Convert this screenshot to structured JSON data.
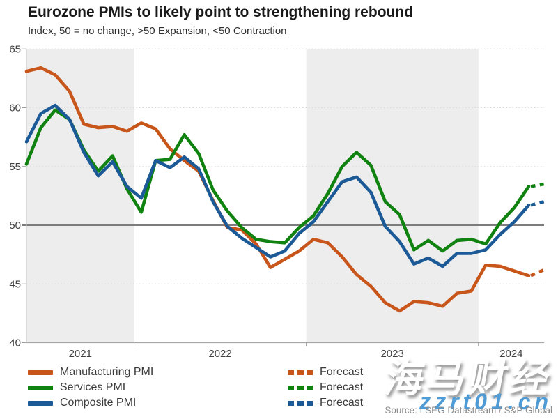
{
  "header": {
    "title": "Eurozone PMIs to likely point to strengthening rebound",
    "subtitle": "Index, 50 = no change, >50 Expansion, <50 Contraction"
  },
  "legend": {
    "forecast_label": "Forecast"
  },
  "source": "Source: LSEG Datastream / S&P Global",
  "watermark": {
    "cjk": "海马财经",
    "latin": "zzrt01.cn"
  },
  "chart_data": {
    "type": "line",
    "title": "Eurozone PMIs to likely point to strengthening rebound",
    "subtitle": "Index, 50 = no change, >50 Expansion, <50 Contraction",
    "ylim": [
      40,
      65
    ],
    "y_ticks": [
      65,
      60,
      55,
      50,
      45,
      40
    ],
    "reference_line": 50,
    "x_tick_years": [
      "2021",
      "2022",
      "2023",
      "2024"
    ],
    "shaded_years": [
      "2021",
      "2023"
    ],
    "band_color": "#ededed",
    "reference_line_color": "#7c7c7c",
    "gridline_color": "#d6d6d6",
    "legend_position": "bottom-left",
    "categories": [
      "2021-05",
      "2021-06",
      "2021-07",
      "2021-08",
      "2021-09",
      "2021-10",
      "2021-11",
      "2021-12",
      "2022-01",
      "2022-02",
      "2022-03",
      "2022-04",
      "2022-05",
      "2022-06",
      "2022-07",
      "2022-08",
      "2022-09",
      "2022-10",
      "2022-11",
      "2022-12",
      "2023-01",
      "2023-02",
      "2023-03",
      "2023-04",
      "2023-05",
      "2023-06",
      "2023-07",
      "2023-08",
      "2023-09",
      "2023-10",
      "2023-11",
      "2023-12",
      "2024-01",
      "2024-02",
      "2024-03",
      "2024-04"
    ],
    "forecast_category": "2024-05",
    "series": [
      {
        "name": "Manufacturing PMI",
        "color": "#c8551a",
        "values": [
          63.1,
          63.4,
          62.8,
          61.4,
          58.6,
          58.3,
          58.4,
          58.0,
          58.7,
          58.2,
          56.5,
          55.5,
          54.6,
          52.1,
          49.8,
          49.6,
          48.4,
          46.4,
          47.1,
          47.8,
          48.8,
          48.5,
          47.3,
          45.8,
          44.8,
          43.4,
          42.7,
          43.5,
          43.4,
          43.1,
          44.2,
          44.4,
          46.6,
          46.5,
          46.1,
          45.7
        ],
        "forecast": 46.2
      },
      {
        "name": "Services PMI",
        "color": "#108210",
        "values": [
          55.2,
          58.3,
          59.8,
          59.0,
          56.4,
          54.6,
          55.9,
          53.1,
          51.1,
          55.5,
          55.6,
          57.7,
          56.1,
          53.0,
          51.2,
          49.8,
          48.8,
          48.6,
          48.5,
          49.8,
          50.8,
          52.7,
          55.0,
          56.2,
          55.1,
          52.0,
          50.9,
          47.9,
          48.7,
          47.8,
          48.7,
          48.8,
          48.4,
          50.2,
          51.5,
          53.3
        ],
        "forecast": 53.5
      },
      {
        "name": "Composite PMI",
        "color": "#1b5a96",
        "values": [
          57.1,
          59.5,
          60.2,
          59.0,
          56.2,
          54.2,
          55.4,
          53.3,
          52.3,
          55.5,
          54.9,
          55.8,
          54.8,
          52.0,
          49.9,
          48.9,
          48.1,
          47.3,
          47.8,
          49.3,
          50.3,
          52.0,
          53.7,
          54.1,
          52.8,
          49.9,
          48.6,
          46.7,
          47.2,
          46.5,
          47.6,
          47.6,
          47.9,
          49.2,
          50.3,
          51.7
        ],
        "forecast": 52.0
      }
    ]
  }
}
